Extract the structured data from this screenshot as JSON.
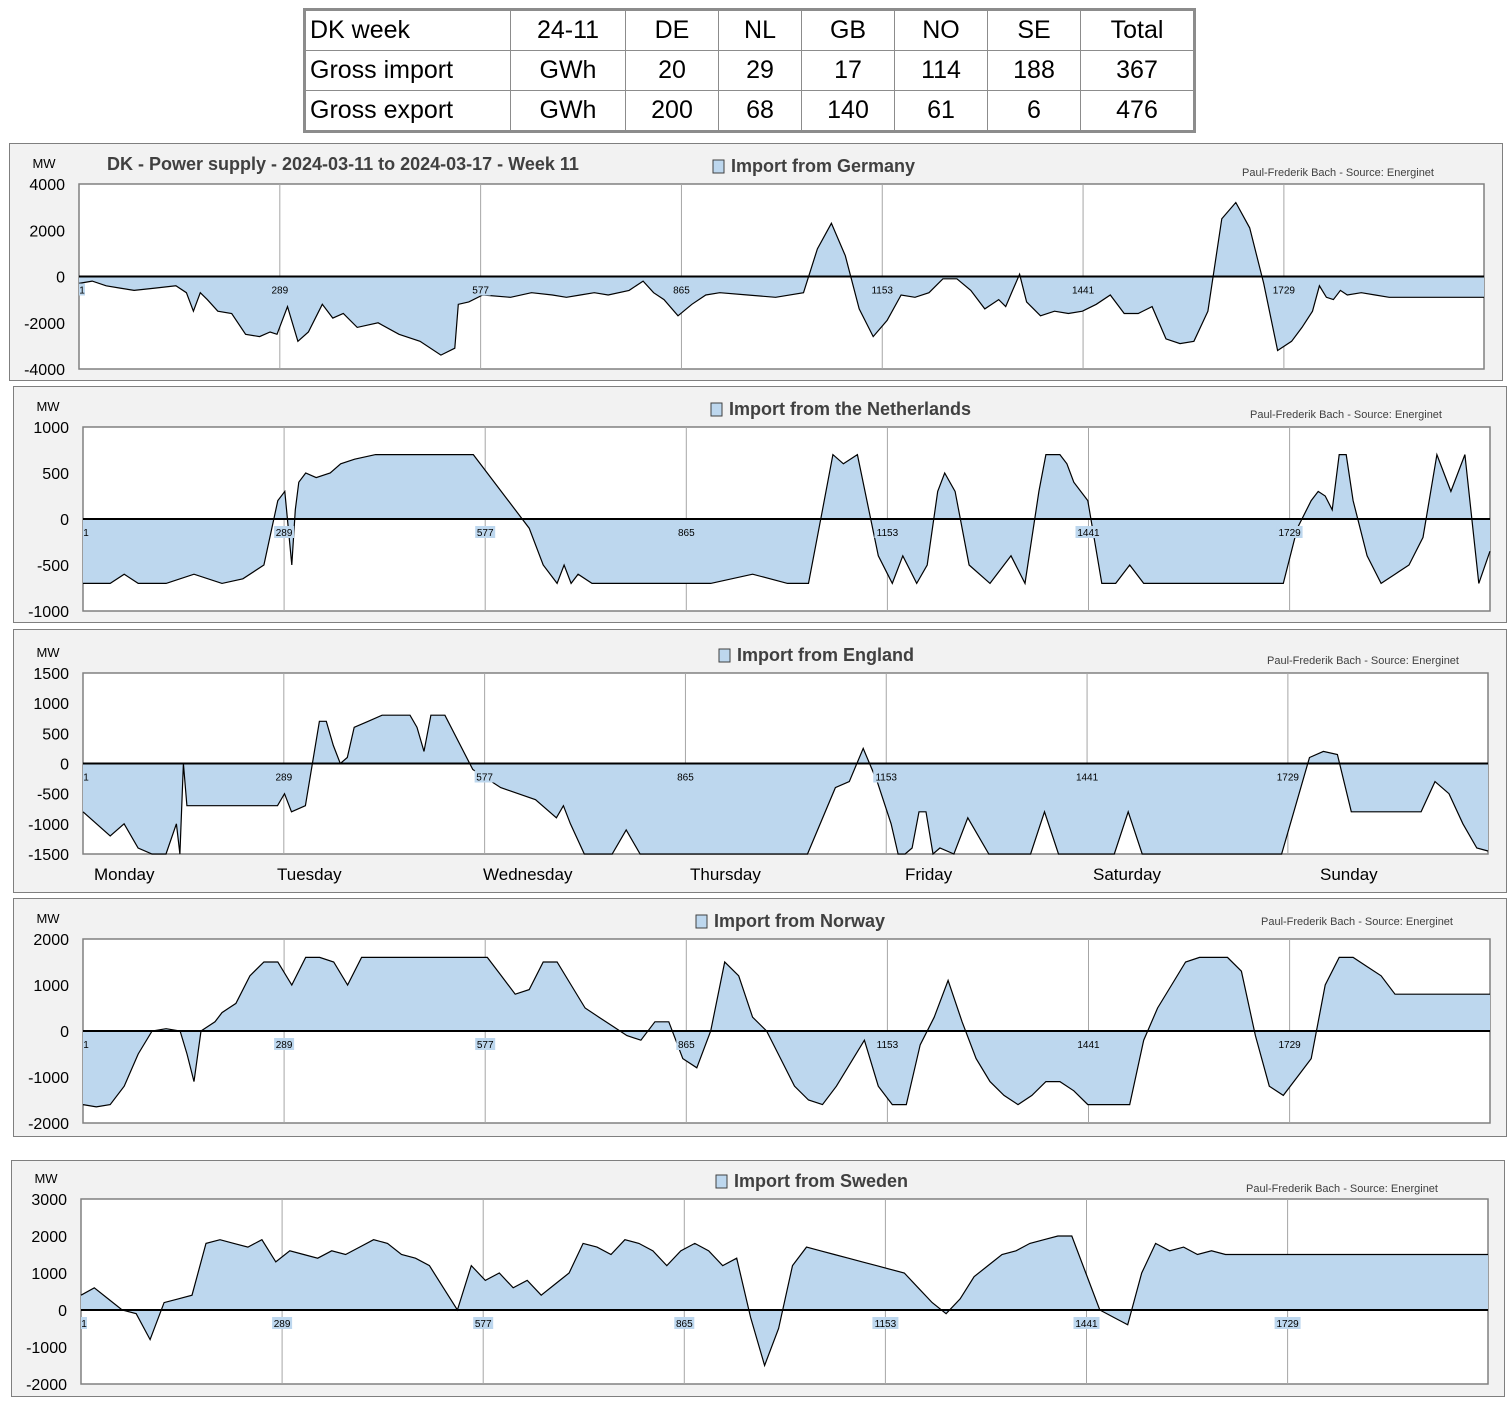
{
  "summary_table": {
    "header": [
      "DK week",
      "24-11",
      "DE",
      "NL",
      "GB",
      "NO",
      "SE",
      "Total"
    ],
    "rows": [
      [
        "Gross import",
        "GWh",
        "20",
        "29",
        "17",
        "114",
        "188",
        "367"
      ],
      [
        "Gross export",
        "GWh",
        "200",
        "68",
        "140",
        "61",
        "6",
        "476"
      ]
    ]
  },
  "main_title": "DK - Power supply  - 2024-03-11 to 2024-03-17 - Week 11",
  "credit": "Paul-Frederik Bach - Source: Energinet",
  "unit": "MW",
  "x_tick_labels": [
    "1",
    "289",
    "577",
    "865",
    "1153",
    "1441",
    "1729"
  ],
  "day_labels": [
    "Monday",
    "Tuesday",
    "Wednesday",
    "Thursday",
    "Friday",
    "Saturday",
    "Sunday"
  ],
  "colors": {
    "fill": "#bdd7ee",
    "line": "#000000",
    "panel": "#f2f2f2",
    "grid": "#a6a6a6"
  },
  "chart_data": [
    {
      "type": "area",
      "legend": "Import from Germany",
      "ylim": [
        -4000,
        4000
      ],
      "yticks": [
        4000,
        2000,
        0,
        -2000,
        -4000
      ],
      "x": [
        1,
        20,
        40,
        60,
        80,
        110,
        140,
        155,
        165,
        175,
        185,
        200,
        220,
        240,
        260,
        275,
        285,
        300,
        315,
        330,
        350,
        365,
        380,
        400,
        430,
        460,
        490,
        520,
        540,
        545,
        560,
        580,
        620,
        650,
        680,
        700,
        720,
        740,
        760,
        790,
        810,
        825,
        840,
        860,
        880,
        900,
        920,
        960,
        1000,
        1040,
        1060,
        1080,
        1100,
        1120,
        1140,
        1160,
        1180,
        1200,
        1220,
        1240,
        1260,
        1280,
        1300,
        1320,
        1330,
        1340,
        1350,
        1360,
        1380,
        1400,
        1420,
        1440,
        1460,
        1480,
        1500,
        1520,
        1540,
        1560,
        1580,
        1600,
        1620,
        1640,
        1660,
        1680,
        1700,
        1720,
        1740,
        1755,
        1770,
        1780,
        1790,
        1800,
        1810,
        1820,
        1840,
        1860,
        1880,
        1900,
        1920,
        1940,
        1960,
        1980,
        2000,
        2016
      ],
      "values": [
        -300,
        -200,
        -400,
        -500,
        -600,
        -500,
        -400,
        -700,
        -1500,
        -700,
        -1000,
        -1500,
        -1600,
        -2500,
        -2600,
        -2400,
        -2500,
        -1300,
        -2800,
        -2400,
        -1200,
        -1800,
        -1600,
        -2200,
        -2000,
        -2500,
        -2800,
        -3400,
        -3100,
        -1200,
        -1100,
        -800,
        -900,
        -700,
        -800,
        -900,
        -800,
        -700,
        -800,
        -600,
        -200,
        -700,
        -1000,
        -1700,
        -1200,
        -800,
        -700,
        -800,
        -900,
        -700,
        1200,
        2300,
        900,
        -1400,
        -2600,
        -1900,
        -800,
        -900,
        -700,
        -100,
        -100,
        -600,
        -1400,
        -1000,
        -1300,
        -600,
        100,
        -1100,
        -1700,
        -1500,
        -1600,
        -1500,
        -1200,
        -800,
        -1600,
        -1600,
        -1300,
        -2700,
        -2900,
        -2800,
        -1500,
        2500,
        3200,
        2100,
        -300,
        -3200,
        -2800,
        -2200,
        -1500,
        -400,
        -900,
        -1000,
        -600,
        -800,
        -700,
        -800,
        -900,
        -900,
        -900,
        -900,
        -900,
        -900,
        -900,
        -900
      ],
      "xmax": 2016
    },
    {
      "type": "area",
      "legend": "Import from the Netherlands",
      "ylim": [
        -1000,
        1000
      ],
      "yticks": [
        1000,
        500,
        0,
        -500,
        -1000
      ],
      "x": [
        1,
        40,
        60,
        80,
        120,
        160,
        200,
        230,
        260,
        280,
        290,
        300,
        305,
        310,
        320,
        335,
        355,
        370,
        390,
        420,
        480,
        520,
        560,
        640,
        660,
        680,
        690,
        700,
        710,
        730,
        760,
        800,
        840,
        900,
        960,
        1010,
        1040,
        1060,
        1075,
        1090,
        1110,
        1140,
        1160,
        1175,
        1195,
        1210,
        1225,
        1235,
        1250,
        1270,
        1300,
        1330,
        1350,
        1370,
        1380,
        1390,
        1400,
        1410,
        1420,
        1440,
        1460,
        1480,
        1500,
        1520,
        1560,
        1600,
        1640,
        1680,
        1720,
        1740,
        1760,
        1770,
        1780,
        1790,
        1800,
        1810,
        1820,
        1840,
        1860,
        1880,
        1900,
        1920,
        1940,
        1960,
        1980,
        2000,
        2016
      ],
      "values": [
        -700,
        -700,
        -600,
        -700,
        -700,
        -600,
        -700,
        -650,
        -500,
        200,
        300,
        -500,
        100,
        400,
        500,
        450,
        500,
        600,
        650,
        700,
        700,
        700,
        700,
        -100,
        -500,
        -700,
        -500,
        -700,
        -600,
        -700,
        -700,
        -700,
        -700,
        -700,
        -600,
        -700,
        -700,
        100,
        700,
        600,
        700,
        -400,
        -700,
        -400,
        -700,
        -500,
        300,
        500,
        300,
        -500,
        -700,
        -400,
        -700,
        300,
        700,
        700,
        700,
        600,
        400,
        200,
        -700,
        -700,
        -500,
        -700,
        -700,
        -700,
        -700,
        -700,
        -700,
        -100,
        200,
        300,
        250,
        100,
        700,
        700,
        200,
        -400,
        -700,
        -600,
        -500,
        -200,
        700,
        300,
        700,
        -700,
        -350
      ],
      "xmax": 2016
    },
    {
      "type": "area",
      "legend": "Import from England",
      "ylim": [
        -1500,
        1500
      ],
      "yticks": [
        1500,
        1000,
        500,
        0,
        -500,
        -1000,
        -1500
      ],
      "x": [
        1,
        40,
        60,
        80,
        100,
        120,
        135,
        140,
        145,
        150,
        160,
        170,
        180,
        200,
        240,
        280,
        290,
        300,
        320,
        340,
        350,
        360,
        370,
        380,
        390,
        410,
        430,
        450,
        470,
        480,
        490,
        500,
        520,
        560,
        600,
        650,
        680,
        690,
        700,
        720,
        740,
        760,
        780,
        800,
        820,
        880,
        920,
        960,
        1040,
        1080,
        1100,
        1120,
        1140,
        1160,
        1170,
        1180,
        1190,
        1200,
        1210,
        1220,
        1230,
        1250,
        1270,
        1300,
        1330,
        1360,
        1380,
        1400,
        1420,
        1440,
        1460,
        1480,
        1500,
        1520,
        1560,
        1600,
        1640,
        1680,
        1720,
        1740,
        1760,
        1780,
        1800,
        1820,
        1840,
        1860,
        1880,
        1900,
        1920,
        1940,
        1960,
        1980,
        2000,
        2016
      ],
      "values": [
        -800,
        -1200,
        -1000,
        -1400,
        -1500,
        -1500,
        -1000,
        -1500,
        0,
        -700,
        -700,
        -700,
        -700,
        -700,
        -700,
        -700,
        -500,
        -800,
        -700,
        700,
        700,
        300,
        0,
        100,
        600,
        700,
        800,
        800,
        800,
        600,
        200,
        800,
        800,
        -100,
        -400,
        -600,
        -900,
        -700,
        -1000,
        -1500,
        -1500,
        -1500,
        -1100,
        -1500,
        -1500,
        -1500,
        -1500,
        -1500,
        -1500,
        -400,
        -300,
        250,
        -300,
        -1000,
        -1500,
        -1500,
        -1400,
        -800,
        -800,
        -1500,
        -1400,
        -1500,
        -900,
        -1500,
        -1500,
        -1500,
        -800,
        -1500,
        -1500,
        -1500,
        -1500,
        -1500,
        -800,
        -1500,
        -1500,
        -1500,
        -1500,
        -1500,
        -1500,
        -700,
        100,
        200,
        150,
        -800,
        -800,
        -800,
        -800,
        -800,
        -800,
        -300,
        -500,
        -1000,
        -1400,
        -1450
      ],
      "xmax": 2016
    },
    {
      "type": "area",
      "legend": "Import from Norway",
      "ylim": [
        -2000,
        2000
      ],
      "yticks": [
        2000,
        1000,
        0,
        -1000,
        -2000
      ],
      "x": [
        1,
        20,
        40,
        60,
        80,
        100,
        120,
        140,
        150,
        160,
        170,
        180,
        190,
        200,
        210,
        220,
        240,
        260,
        280,
        300,
        320,
        340,
        360,
        380,
        400,
        440,
        480,
        520,
        560,
        580,
        600,
        620,
        640,
        660,
        680,
        700,
        720,
        740,
        760,
        780,
        800,
        820,
        840,
        860,
        880,
        900,
        920,
        940,
        960,
        980,
        1000,
        1020,
        1040,
        1060,
        1080,
        1100,
        1120,
        1140,
        1160,
        1180,
        1200,
        1220,
        1240,
        1260,
        1280,
        1300,
        1320,
        1340,
        1360,
        1380,
        1400,
        1420,
        1440,
        1460,
        1480,
        1500,
        1520,
        1540,
        1560,
        1580,
        1600,
        1620,
        1640,
        1660,
        1680,
        1700,
        1720,
        1740,
        1760,
        1780,
        1800,
        1820,
        1840,
        1860,
        1880,
        1900,
        1920,
        1940,
        1960,
        1980,
        2000,
        2016
      ],
      "values": [
        -1600,
        -1650,
        -1600,
        -1200,
        -500,
        0,
        50,
        0,
        -500,
        -1100,
        0,
        100,
        200,
        400,
        500,
        600,
        1200,
        1500,
        1500,
        1000,
        1600,
        1600,
        1500,
        1000,
        1600,
        1600,
        1600,
        1600,
        1600,
        1600,
        1200,
        800,
        900,
        1500,
        1500,
        1000,
        500,
        300,
        100,
        -100,
        -200,
        200,
        200,
        -600,
        -800,
        0,
        1500,
        1200,
        300,
        0,
        -600,
        -1200,
        -1500,
        -1600,
        -1200,
        -700,
        -200,
        -1200,
        -1600,
        -1600,
        -300,
        300,
        1100,
        200,
        -600,
        -1100,
        -1400,
        -1600,
        -1400,
        -1100,
        -1100,
        -1300,
        -1600,
        -1600,
        -1600,
        -1600,
        -200,
        500,
        1000,
        1500,
        1600,
        1600,
        1600,
        1300,
        -100,
        -1200,
        -1400,
        -1000,
        -600,
        1000,
        1600,
        1600,
        1400,
        1200,
        800,
        800,
        800,
        800,
        800,
        800,
        800,
        800
      ],
      "xmax": 2016
    },
    {
      "type": "area",
      "legend": "Import from Sweden",
      "ylim": [
        -2000,
        3000
      ],
      "yticks": [
        3000,
        2000,
        1000,
        0,
        -1000,
        -2000
      ],
      "x": [
        1,
        20,
        40,
        60,
        80,
        100,
        120,
        140,
        160,
        180,
        200,
        220,
        240,
        260,
        280,
        300,
        320,
        340,
        360,
        380,
        400,
        420,
        440,
        460,
        480,
        500,
        520,
        540,
        560,
        580,
        600,
        620,
        640,
        660,
        680,
        700,
        720,
        740,
        760,
        780,
        800,
        820,
        840,
        860,
        880,
        900,
        920,
        940,
        960,
        980,
        1000,
        1020,
        1040,
        1060,
        1080,
        1100,
        1120,
        1140,
        1160,
        1180,
        1200,
        1220,
        1240,
        1260,
        1280,
        1300,
        1320,
        1340,
        1360,
        1380,
        1400,
        1420,
        1440,
        1460,
        1480,
        1500,
        1520,
        1540,
        1560,
        1580,
        1600,
        1620,
        1640,
        1660,
        1680,
        1700,
        1720,
        1740,
        1760,
        1780,
        1800,
        1820,
        1840,
        1860,
        1880,
        1900,
        1920,
        1940,
        1960,
        1980,
        2000,
        2016
      ],
      "values": [
        400,
        600,
        300,
        0,
        -100,
        -800,
        200,
        300,
        400,
        1800,
        1900,
        1800,
        1700,
        1900,
        1300,
        1600,
        1500,
        1400,
        1600,
        1500,
        1700,
        1900,
        1800,
        1500,
        1400,
        1200,
        600,
        0,
        1200,
        800,
        1000,
        600,
        800,
        400,
        700,
        1000,
        1800,
        1700,
        1500,
        1900,
        1800,
        1600,
        1200,
        1600,
        1800,
        1600,
        1200,
        1400,
        -200,
        -1500,
        -500,
        1200,
        1700,
        1600,
        1500,
        1400,
        1300,
        1200,
        1100,
        1000,
        600,
        200,
        -100,
        300,
        900,
        1200,
        1500,
        1600,
        1800,
        1900,
        2000,
        2000,
        1000,
        0,
        -200,
        -400,
        1000,
        1800,
        1600,
        1700,
        1500,
        1600,
        1500,
        1500,
        1500,
        1500,
        1500,
        1500,
        1500,
        1500,
        1500,
        1500,
        1500,
        1500,
        1500,
        1500,
        1500,
        1500,
        1500,
        1500,
        1500,
        1500
      ],
      "xmax": 2016
    }
  ]
}
